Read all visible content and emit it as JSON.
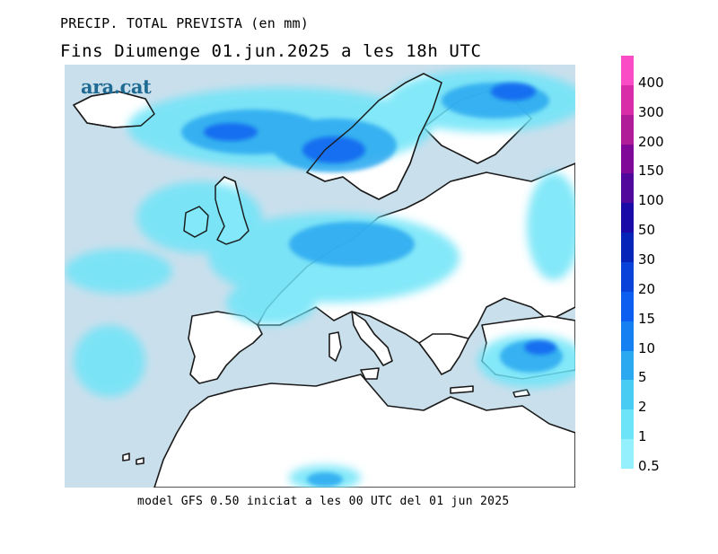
{
  "title": "PRECIP. TOTAL PREVISTA (en mm)",
  "subtitle": "Fins Diumenge 01.jun.2025 a les 18h UTC",
  "logo_text": "ara.cat",
  "footer": "model GFS 0.50 iniciat a les 00 UTC del 01 jun 2025",
  "legend": {
    "levels": [
      "0.5",
      "1",
      "2",
      "5",
      "10",
      "15",
      "20",
      "30",
      "50",
      "100",
      "150",
      "200",
      "300",
      "400"
    ],
    "colors": [
      "#94f0fc",
      "#6ee4f8",
      "#48ccf4",
      "#2aa8f0",
      "#1480f2",
      "#0c5ef0",
      "#0842d8",
      "#0624b8",
      "#1a0aa8",
      "#50089c",
      "#800898",
      "#b01c98",
      "#d82ca8",
      "#fa4cc4"
    ]
  },
  "map": {
    "ocean_color": "#cadfec",
    "land_color": "#ffffff",
    "coast_color": "#1a1a1a"
  }
}
